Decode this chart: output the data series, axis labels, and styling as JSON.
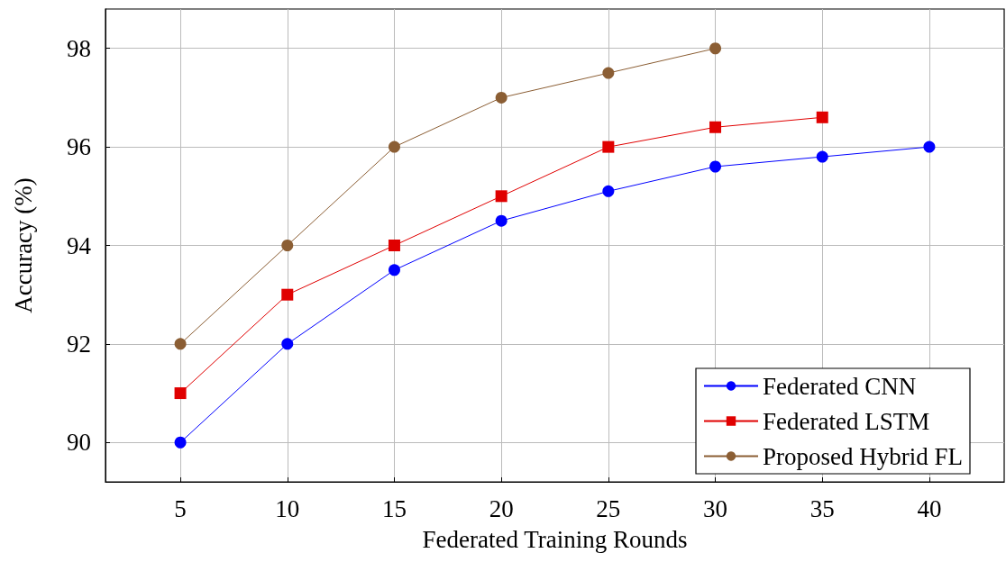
{
  "chart_data": {
    "type": "line",
    "xlabel": "Federated Training Rounds",
    "ylabel": "Accuracy (%)",
    "xlim": [
      1.5,
      43.5
    ],
    "xticks": [
      5,
      10,
      15,
      20,
      25,
      30,
      35,
      40
    ],
    "ylim": [
      89.2,
      98.8
    ],
    "yticks": [
      90,
      92,
      94,
      96,
      98
    ],
    "grid": true,
    "legend": "bottom right",
    "series": [
      {
        "name": "Federated CNN",
        "color": "#0000ff",
        "marker": "circle",
        "x": [
          5,
          10,
          15,
          20,
          25,
          30,
          35,
          40
        ],
        "values": [
          90,
          92,
          93.5,
          94.5,
          95.1,
          95.6,
          95.8,
          96
        ]
      },
      {
        "name": "Federated LSTM",
        "color": "#e00000",
        "marker": "square",
        "x": [
          5,
          10,
          15,
          20,
          25,
          30,
          35
        ],
        "values": [
          91,
          93,
          94,
          95,
          96,
          96.4,
          96.6
        ]
      },
      {
        "name": "Proposed Hybrid FL",
        "color": "#8b5e34",
        "marker": "circle",
        "x": [
          5,
          10,
          15,
          20,
          25,
          30
        ],
        "values": [
          92,
          94,
          96,
          97,
          97.5,
          98
        ]
      }
    ]
  }
}
